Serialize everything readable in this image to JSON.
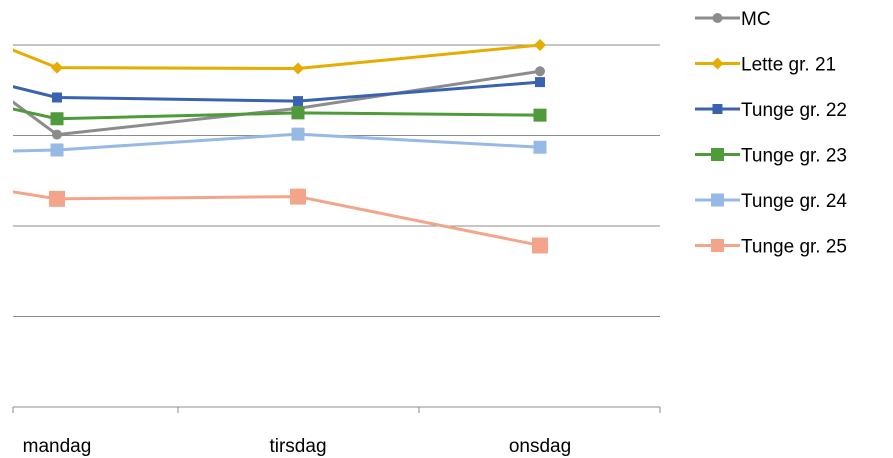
{
  "chart_data": {
    "type": "line",
    "title": "",
    "xlabel": "",
    "ylabel": "",
    "categories": [
      "mandag",
      "tirsdag",
      "onsdag"
    ],
    "x_range_categories": [
      -0.19,
      2.5
    ],
    "ylim": [
      0,
      8
    ],
    "y_gridlines": [
      2,
      4,
      6,
      8
    ],
    "y_tick_labels_shown": false,
    "grid": true,
    "legend_position": "right",
    "series": [
      {
        "name": "MC",
        "color": "#8c8c8c",
        "marker": "circle",
        "start_value": 6.95,
        "values": [
          6.02,
          6.6,
          7.42
        ]
      },
      {
        "name": "Lette gr. 21",
        "color": "#e6ac00",
        "marker": "diamond",
        "start_value": 8.0,
        "values": [
          7.5,
          7.48,
          8.0
        ]
      },
      {
        "name": "Tunge gr. 22",
        "color": "#3a62b0",
        "marker": "square",
        "start_value": 7.15,
        "values": [
          6.84,
          6.76,
          7.18
        ]
      },
      {
        "name": "Tunge gr. 23",
        "color": "#4f9a3a",
        "marker": "square",
        "start_value": 6.65,
        "values": [
          6.37,
          6.5,
          6.45
        ]
      },
      {
        "name": "Tunge gr. 24",
        "color": "#96b9e6",
        "marker": "square",
        "start_value": 5.65,
        "values": [
          5.68,
          6.03,
          5.74
        ]
      },
      {
        "name": "Tunge gr. 25",
        "color": "#f2a58a",
        "marker": "square",
        "start_value": 4.8,
        "values": [
          4.6,
          4.65,
          3.57
        ]
      }
    ]
  }
}
